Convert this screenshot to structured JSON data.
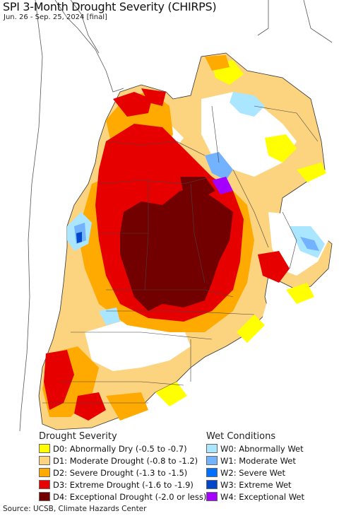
{
  "title": "SPI 3-Month Drought Severity (CHIRPS)",
  "subtitle": "Jun. 26 - Sep. 25, 2024 [final]",
  "colors": {
    "ocean": "#ffffff",
    "outside_land": "#ffffff",
    "D0": "#ffff00",
    "D1": "#fcd37f",
    "D2": "#ffaa00",
    "D3": "#e60000",
    "D4": "#730000",
    "W0": "#aae6ff",
    "W1": "#73b2ff",
    "W2": "#0070ff",
    "W3": "#0046c8",
    "W4": "#a500ff"
  },
  "legend": {
    "drought_heading": "Drought Severity",
    "wet_heading": "Wet Conditions",
    "drought_items": [
      {
        "code": "D0",
        "label": "D0: Abnormally Dry (-0.5 to -0.7)"
      },
      {
        "code": "D1",
        "label": "D1: Moderate Drought (-0.8 to -1.2)"
      },
      {
        "code": "D2",
        "label": "D2: Severe Drought (-1.3 to -1.5)"
      },
      {
        "code": "D3",
        "label": "D3: Extreme Drought (-1.6 to -1.9)"
      },
      {
        "code": "D4",
        "label": "D4: Exceptional Drought (-2.0 or less)"
      }
    ],
    "wet_items": [
      {
        "code": "W0",
        "label": "W0: Abnormally Wet"
      },
      {
        "code": "W1",
        "label": "W1: Moderate Wet"
      },
      {
        "code": "W2",
        "label": "W2: Severe Wet"
      },
      {
        "code": "W3",
        "label": "W3: Extreme Wet"
      },
      {
        "code": "W4",
        "label": "W4: Exceptional Wet"
      }
    ]
  },
  "source": "Source: UCSB, Climate Hazards Center"
}
